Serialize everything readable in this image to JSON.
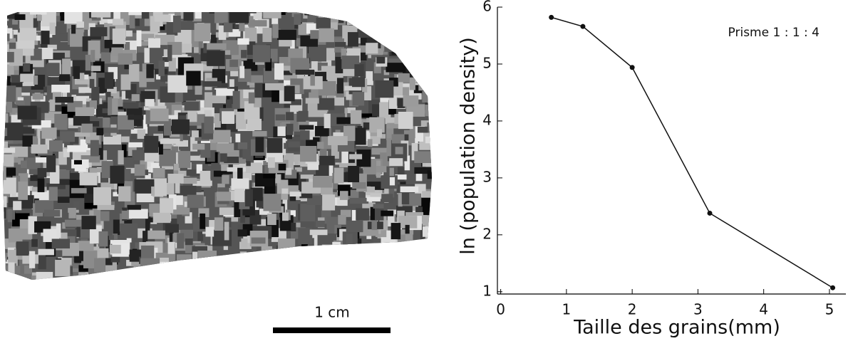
{
  "chart_data": {
    "type": "line",
    "annotation": "Prisme 1 : 1 : 4",
    "xlabel": "Taille des grains(mm)",
    "ylabel": "ln (population density)",
    "x": [
      0.77,
      1.25,
      2.0,
      3.18,
      5.05
    ],
    "series": [
      {
        "color": "#111111",
        "values": [
          5.82,
          5.66,
          4.94,
          2.38,
          1.07
        ]
      }
    ],
    "xlim": [
      -0.05,
      5.25
    ],
    "ylim": [
      0.96,
      6
    ],
    "xticks": [
      0,
      1,
      2,
      3,
      4,
      5
    ],
    "yticks": [
      1,
      2,
      3,
      4,
      5,
      6
    ]
  },
  "scale_bar": {
    "label": "1 cm"
  }
}
